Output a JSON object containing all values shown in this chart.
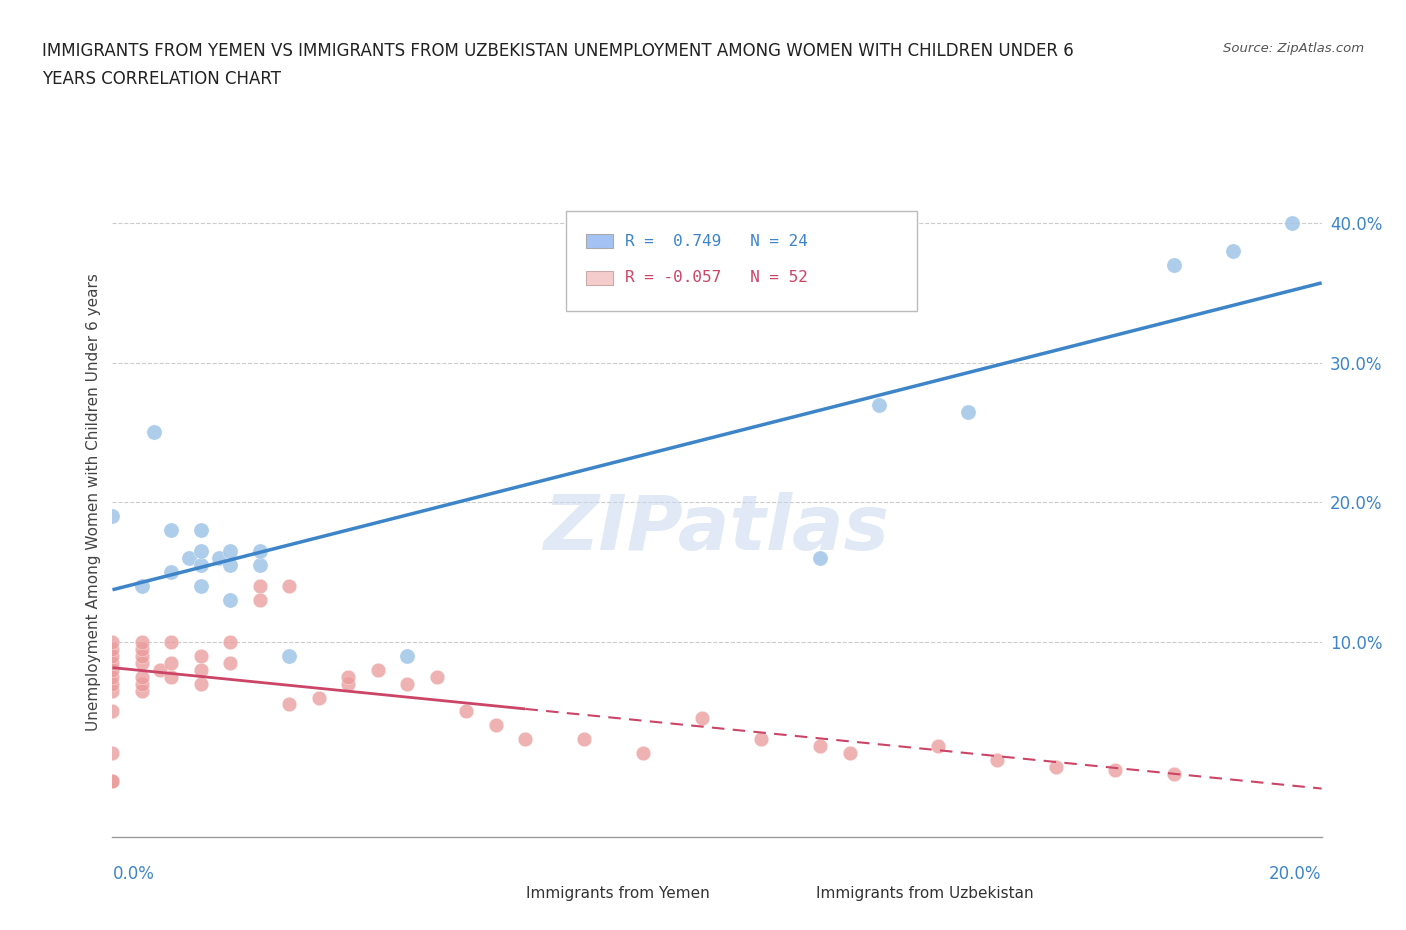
{
  "title_line1": "IMMIGRANTS FROM YEMEN VS IMMIGRANTS FROM UZBEKISTAN UNEMPLOYMENT AMONG WOMEN WITH CHILDREN UNDER 6",
  "title_line2": "YEARS CORRELATION CHART",
  "source": "Source: ZipAtlas.com",
  "ylabel": "Unemployment Among Women with Children Under 6 years",
  "ytick_labels": [
    "10.0%",
    "20.0%",
    "30.0%",
    "40.0%"
  ],
  "ytick_values": [
    0.1,
    0.2,
    0.3,
    0.4
  ],
  "xlim": [
    0.0,
    0.205
  ],
  "ylim": [
    -0.04,
    0.44
  ],
  "watermark": "ZIPatlas",
  "color_yemen": "#9fc5e8",
  "color_uzbekistan": "#ea9999",
  "line_color_yemen": "#3d85c8",
  "line_color_uzbekistan": "#cc4466",
  "color_yemen_legend": "#a4c2f4",
  "color_uzbekistan_legend": "#f4cccc",
  "legend_text1_r": "0.749",
  "legend_text1_n": "24",
  "legend_text2_r": "-0.057",
  "legend_text2_n": "52",
  "yemen_points_x": [
    0.0,
    0.005,
    0.007,
    0.01,
    0.01,
    0.013,
    0.015,
    0.015,
    0.015,
    0.015,
    0.018,
    0.02,
    0.02,
    0.02,
    0.025,
    0.025,
    0.03,
    0.05,
    0.12,
    0.13,
    0.145,
    0.18,
    0.19,
    0.2
  ],
  "yemen_points_y": [
    0.19,
    0.14,
    0.25,
    0.15,
    0.18,
    0.16,
    0.14,
    0.155,
    0.165,
    0.18,
    0.16,
    0.13,
    0.155,
    0.165,
    0.155,
    0.165,
    0.09,
    0.09,
    0.16,
    0.27,
    0.265,
    0.37,
    0.38,
    0.4
  ],
  "uzbekistan_points_x": [
    0.0,
    0.0,
    0.0,
    0.0,
    0.0,
    0.0,
    0.0,
    0.0,
    0.0,
    0.0,
    0.0,
    0.0,
    0.005,
    0.005,
    0.005,
    0.005,
    0.005,
    0.005,
    0.005,
    0.008,
    0.01,
    0.01,
    0.01,
    0.015,
    0.015,
    0.015,
    0.02,
    0.02,
    0.025,
    0.025,
    0.03,
    0.03,
    0.035,
    0.04,
    0.04,
    0.045,
    0.05,
    0.055,
    0.06,
    0.065,
    0.07,
    0.08,
    0.09,
    0.1,
    0.11,
    0.12,
    0.125,
    0.14,
    0.15,
    0.16,
    0.17,
    0.18
  ],
  "uzbekistan_points_y": [
    0.065,
    0.07,
    0.075,
    0.08,
    0.085,
    0.09,
    0.095,
    0.1,
    0.0,
    0.0,
    0.02,
    0.05,
    0.065,
    0.07,
    0.075,
    0.085,
    0.09,
    0.095,
    0.1,
    0.08,
    0.075,
    0.085,
    0.1,
    0.07,
    0.08,
    0.09,
    0.085,
    0.1,
    0.13,
    0.14,
    0.055,
    0.14,
    0.06,
    0.07,
    0.075,
    0.08,
    0.07,
    0.075,
    0.05,
    0.04,
    0.03,
    0.03,
    0.02,
    0.045,
    0.03,
    0.025,
    0.02,
    0.025,
    0.015,
    0.01,
    0.008,
    0.005
  ]
}
